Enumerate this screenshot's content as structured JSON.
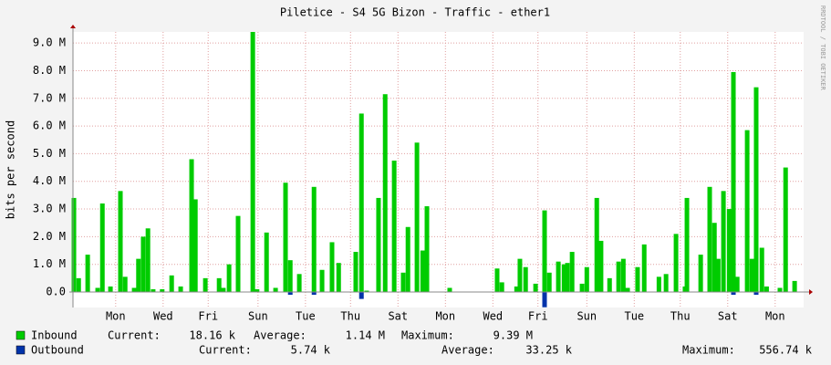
{
  "chart_data": {
    "type": "bar",
    "title": "Piletice - S4 5G Bizon - Traffic - ether1",
    "ylabel": "bits per second",
    "watermark": "RRDTOOL / TOBI OETIKER",
    "xlim": [
      0,
      15.4
    ],
    "xticks": [
      {
        "value": 0.9,
        "label": "Mon"
      },
      {
        "value": 1.9,
        "label": "Wed"
      },
      {
        "value": 2.85,
        "label": "Fri"
      },
      {
        "value": 3.9,
        "label": "Sun"
      },
      {
        "value": 4.9,
        "label": "Tue"
      },
      {
        "value": 5.85,
        "label": "Thu"
      },
      {
        "value": 6.85,
        "label": "Sat"
      },
      {
        "value": 7.85,
        "label": "Mon"
      },
      {
        "value": 8.85,
        "label": "Wed"
      },
      {
        "value": 9.8,
        "label": "Fri"
      },
      {
        "value": 10.83,
        "label": "Sun"
      },
      {
        "value": 11.83,
        "label": "Tue"
      },
      {
        "value": 12.8,
        "label": "Thu"
      },
      {
        "value": 13.8,
        "label": "Sat"
      },
      {
        "value": 14.8,
        "label": "Mon"
      }
    ],
    "ylim": [
      -0.56,
      9.4
    ],
    "yticks": [
      {
        "value": 0,
        "label": "0.0"
      },
      {
        "value": 1,
        "label": "1.0 M"
      },
      {
        "value": 2,
        "label": "2.0 M"
      },
      {
        "value": 3,
        "label": "3.0 M"
      },
      {
        "value": 4,
        "label": "4.0 M"
      },
      {
        "value": 5,
        "label": "5.0 M"
      },
      {
        "value": 6,
        "label": "6.0 M"
      },
      {
        "value": 7,
        "label": "7.0 M"
      },
      {
        "value": 8,
        "label": "8.0 M"
      },
      {
        "value": 9,
        "label": "9.0 M"
      }
    ],
    "grid": true,
    "x": [
      0.02,
      0.12,
      0.31,
      0.52,
      0.62,
      0.79,
      1.0,
      1.1,
      1.29,
      1.38,
      1.48,
      1.58,
      1.69,
      1.88,
      2.08,
      2.27,
      2.5,
      2.58,
      2.79,
      3.08,
      3.17,
      3.29,
      3.48,
      3.79,
      3.88,
      4.08,
      4.27,
      4.48,
      4.58,
      4.77,
      5.08,
      5.25,
      5.46,
      5.6,
      5.96,
      6.08,
      6.19,
      6.44,
      6.58,
      6.77,
      6.96,
      7.06,
      7.25,
      7.37,
      7.46,
      7.94,
      8.94,
      9.04,
      9.35,
      9.42,
      9.54,
      9.75,
      9.94,
      10.04,
      10.23,
      10.35,
      10.42,
      10.52,
      10.73,
      10.83,
      11.04,
      11.13,
      11.31,
      11.5,
      11.6,
      11.69,
      11.9,
      12.04,
      12.35,
      12.5,
      12.71,
      12.9,
      12.94,
      13.23,
      13.42,
      13.52,
      13.6,
      13.71,
      13.83,
      13.92,
      14.0,
      14.21,
      14.31,
      14.4,
      14.52,
      14.62,
      14.9,
      15.02,
      15.21
    ],
    "series": [
      {
        "name": "Inbound",
        "color": "#00cc00",
        "stats": [
          {
            "label": "Current:",
            "value": "18.16 k"
          },
          {
            "label": "Average:",
            "value": "1.14 M"
          },
          {
            "label": "Maximum:",
            "value": "9.39 M"
          }
        ],
        "values": [
          3.4,
          0.5,
          1.35,
          0.15,
          3.2,
          0.2,
          3.65,
          0.55,
          0.15,
          1.2,
          2.0,
          2.3,
          0.1,
          0.1,
          0.6,
          0.2,
          4.8,
          3.35,
          0.5,
          0.5,
          0.15,
          1.0,
          2.75,
          9.4,
          0.1,
          2.15,
          0.15,
          3.95,
          1.15,
          0.65,
          3.8,
          0.8,
          1.8,
          1.05,
          1.45,
          6.45,
          0.05,
          3.4,
          7.15,
          4.75,
          0.7,
          2.35,
          5.4,
          1.5,
          3.1,
          0.15,
          0.85,
          0.35,
          0.2,
          1.2,
          0.9,
          0.3,
          2.95,
          0.7,
          1.1,
          1.0,
          1.05,
          1.45,
          0.3,
          0.9,
          3.4,
          1.85,
          0.5,
          1.1,
          1.2,
          0.15,
          0.9,
          1.72,
          0.55,
          0.65,
          2.1,
          0.2,
          3.4,
          1.35,
          3.8,
          2.5,
          1.2,
          3.65,
          3.0,
          7.95,
          0.55,
          5.85,
          1.2,
          7.4,
          1.6,
          0.2,
          0.15,
          4.5,
          0.4
        ]
      },
      {
        "name": "Outbound",
        "color": "#0033aa",
        "stats": [
          {
            "label": "Current:",
            "value": "5.74 k"
          },
          {
            "label": "Average:",
            "value": "33.25 k"
          },
          {
            "label": "Maximum:",
            "value": "556.74 k"
          }
        ],
        "values": [
          null,
          null,
          null,
          null,
          null,
          null,
          null,
          null,
          null,
          null,
          null,
          null,
          null,
          null,
          null,
          null,
          null,
          null,
          null,
          null,
          null,
          null,
          null,
          null,
          null,
          null,
          null,
          null,
          -0.1,
          null,
          -0.1,
          null,
          null,
          null,
          null,
          -0.25,
          null,
          null,
          null,
          null,
          null,
          null,
          null,
          null,
          null,
          null,
          null,
          null,
          null,
          null,
          null,
          null,
          -0.55,
          null,
          null,
          null,
          null,
          null,
          null,
          null,
          null,
          null,
          null,
          null,
          null,
          null,
          null,
          null,
          null,
          null,
          null,
          null,
          null,
          null,
          null,
          null,
          null,
          null,
          null,
          -0.1,
          null,
          null,
          null,
          -0.1,
          null,
          null,
          null,
          null,
          null
        ]
      }
    ]
  }
}
